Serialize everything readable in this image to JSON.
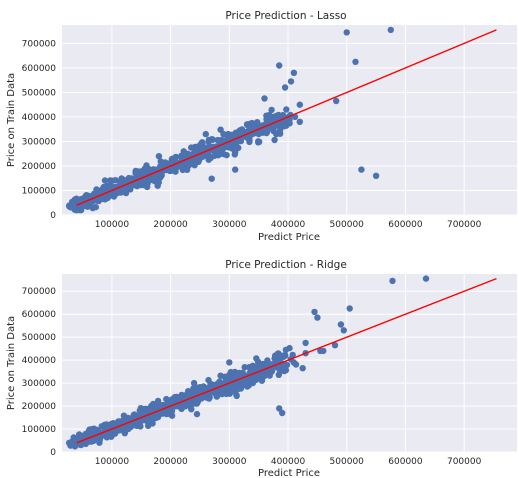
{
  "chart_data": [
    {
      "type": "scatter",
      "title": "Price Prediction - Lasso",
      "xlabel": "Predict Price",
      "ylabel": "Price on Train Data",
      "xlim": [
        15000,
        790000
      ],
      "ylim": [
        0,
        775000
      ],
      "x_ticks": [
        100000,
        200000,
        300000,
        400000,
        500000,
        600000,
        700000
      ],
      "y_ticks": [
        0,
        100000,
        200000,
        300000,
        400000,
        500000,
        600000,
        700000
      ],
      "grid": true,
      "point_color": "#4c72b0",
      "line_color": "#ff0000",
      "reference_line": {
        "x": [
          40000,
          755000
        ],
        "y": [
          40000,
          755000
        ]
      },
      "trend": {
        "x_min": 40000,
        "x_max": 400000,
        "slope": 1.0,
        "spread": 28000
      },
      "points": [
        {
          "x": 575000,
          "y": 755000
        },
        {
          "x": 500000,
          "y": 745000
        },
        {
          "x": 515000,
          "y": 625000
        },
        {
          "x": 385000,
          "y": 610000
        },
        {
          "x": 410000,
          "y": 580000
        },
        {
          "x": 405000,
          "y": 545000
        },
        {
          "x": 395000,
          "y": 520000
        },
        {
          "x": 482000,
          "y": 465000
        },
        {
          "x": 360000,
          "y": 475000
        },
        {
          "x": 420000,
          "y": 450000
        },
        {
          "x": 412000,
          "y": 400000
        },
        {
          "x": 420000,
          "y": 380000
        },
        {
          "x": 525000,
          "y": 185000
        },
        {
          "x": 550000,
          "y": 160000
        },
        {
          "x": 270000,
          "y": 148000
        },
        {
          "x": 310000,
          "y": 185000
        },
        {
          "x": 380000,
          "y": 330000
        },
        {
          "x": 235000,
          "y": 275000
        },
        {
          "x": 180000,
          "y": 240000
        },
        {
          "x": 260000,
          "y": 330000
        },
        {
          "x": 290000,
          "y": 330000
        }
      ]
    },
    {
      "type": "scatter",
      "title": "Price Prediction - Ridge",
      "xlabel": "Predict Price",
      "ylabel": "Price on Train Data",
      "xlim": [
        15000,
        790000
      ],
      "ylim": [
        0,
        775000
      ],
      "x_ticks": [
        100000,
        200000,
        300000,
        400000,
        500000,
        600000,
        700000
      ],
      "y_ticks": [
        0,
        100000,
        200000,
        300000,
        400000,
        500000,
        600000,
        700000
      ],
      "grid": true,
      "point_color": "#4c72b0",
      "line_color": "#ff0000",
      "reference_line": {
        "x": [
          40000,
          755000
        ],
        "y": [
          40000,
          755000
        ]
      },
      "trend": {
        "x_min": 40000,
        "x_max": 400000,
        "slope": 1.0,
        "spread": 28000
      },
      "points": [
        {
          "x": 635000,
          "y": 755000
        },
        {
          "x": 578000,
          "y": 745000
        },
        {
          "x": 505000,
          "y": 625000
        },
        {
          "x": 445000,
          "y": 610000
        },
        {
          "x": 450000,
          "y": 585000
        },
        {
          "x": 490000,
          "y": 555000
        },
        {
          "x": 495000,
          "y": 530000
        },
        {
          "x": 480000,
          "y": 465000
        },
        {
          "x": 430000,
          "y": 475000
        },
        {
          "x": 460000,
          "y": 440000
        },
        {
          "x": 455000,
          "y": 440000
        },
        {
          "x": 430000,
          "y": 430000
        },
        {
          "x": 385000,
          "y": 190000
        },
        {
          "x": 390000,
          "y": 170000
        },
        {
          "x": 240000,
          "y": 300000
        },
        {
          "x": 245000,
          "y": 165000
        },
        {
          "x": 150000,
          "y": 135000
        },
        {
          "x": 340000,
          "y": 300000
        },
        {
          "x": 300000,
          "y": 390000
        },
        {
          "x": 425000,
          "y": 365000
        },
        {
          "x": 350000,
          "y": 330000
        }
      ]
    }
  ]
}
